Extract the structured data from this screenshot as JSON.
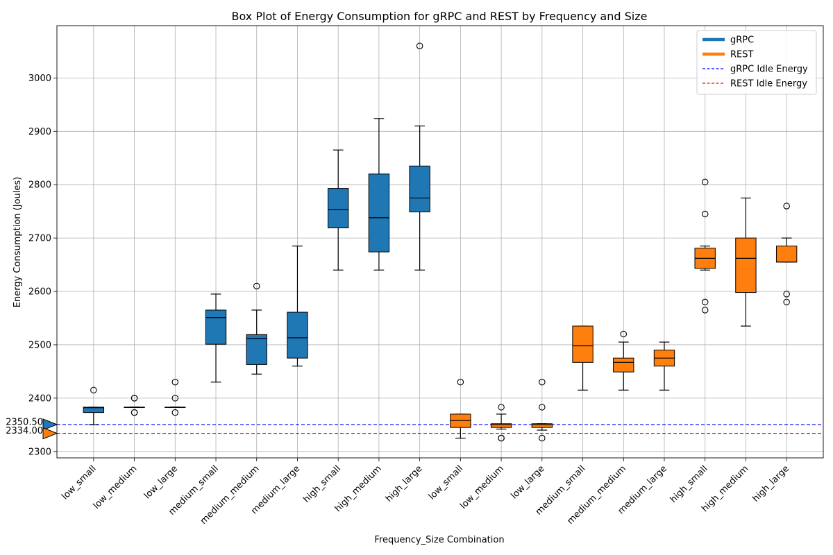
{
  "chart_data": {
    "type": "box",
    "title": "Box Plot of Energy Consumption for gRPC and REST by Frequency and Size",
    "xlabel": "Frequency_Size Combination",
    "ylabel": "Energy Consumption (Joules)",
    "ylim": [
      2288,
      3098
    ],
    "yticks": [
      2300,
      2400,
      2500,
      2600,
      2700,
      2800,
      2900,
      3000
    ],
    "grid": true,
    "legend_placement": "top-right",
    "legend": [
      {
        "label": "gRPC",
        "kind": "line",
        "color": "#1f77b4"
      },
      {
        "label": "REST",
        "kind": "line",
        "color": "#ff7f0e"
      },
      {
        "label": "gRPC Idle Energy",
        "kind": "dashed",
        "color": "#0000ff"
      },
      {
        "label": "REST Idle Energy",
        "kind": "dashed",
        "color": "#ff0000"
      }
    ],
    "idle_lines": [
      {
        "name": "gRPC Idle Energy",
        "value": 2350.5,
        "label": "2350.50",
        "color": "#0000ff",
        "marker_color": "#1f77b4"
      },
      {
        "name": "REST Idle Energy",
        "value": 2334.0,
        "label": "2334.00",
        "color": "#ff0000",
        "marker_color": "#ff7f0e"
      }
    ],
    "series": [
      {
        "name": "gRPC",
        "color": "#1f77b4",
        "boxes": [
          {
            "category": "low_small",
            "whislo": 2350,
            "q1": 2373,
            "med": 2382,
            "q3": 2383,
            "whishi": 2383,
            "fliers": [
              2415
            ]
          },
          {
            "category": "low_medium",
            "whislo": 2383,
            "q1": 2383,
            "med": 2383,
            "q3": 2383,
            "whishi": 2383,
            "fliers": [
              2400,
              2400,
              2373,
              2373
            ]
          },
          {
            "category": "low_large",
            "whislo": 2383,
            "q1": 2383,
            "med": 2383,
            "q3": 2383,
            "whishi": 2383,
            "fliers": [
              2430,
              2400,
              2373
            ]
          },
          {
            "category": "medium_small",
            "whislo": 2430,
            "q1": 2501,
            "med": 2551,
            "q3": 2565,
            "whishi": 2595,
            "fliers": []
          },
          {
            "category": "medium_medium",
            "whislo": 2445,
            "q1": 2463,
            "med": 2512,
            "q3": 2519,
            "whishi": 2565,
            "fliers": [
              2610
            ]
          },
          {
            "category": "medium_large",
            "whislo": 2460,
            "q1": 2475,
            "med": 2513,
            "q3": 2561,
            "whishi": 2685,
            "fliers": []
          },
          {
            "category": "high_small",
            "whislo": 2640,
            "q1": 2719,
            "med": 2753,
            "q3": 2793,
            "whishi": 2865,
            "fliers": []
          },
          {
            "category": "high_medium",
            "whislo": 2640,
            "q1": 2674,
            "med": 2738,
            "q3": 2820,
            "whishi": 2924,
            "fliers": []
          },
          {
            "category": "high_large",
            "whislo": 2640,
            "q1": 2749,
            "med": 2775,
            "q3": 2835,
            "whishi": 2910,
            "fliers": [
              3060
            ]
          }
        ]
      },
      {
        "name": "REST",
        "color": "#ff7f0e",
        "boxes": [
          {
            "category": "low_small",
            "whislo": 2325,
            "q1": 2345,
            "med": 2358,
            "q3": 2370,
            "whishi": 2370,
            "fliers": [
              2430
            ]
          },
          {
            "category": "low_medium",
            "whislo": 2342,
            "q1": 2345,
            "med": 2350,
            "q3": 2352,
            "whishi": 2370,
            "fliers": [
              2383,
              2325,
              2325
            ]
          },
          {
            "category": "low_large",
            "whislo": 2340,
            "q1": 2345,
            "med": 2350,
            "q3": 2352,
            "whishi": 2352,
            "fliers": [
              2430,
              2383,
              2325
            ]
          },
          {
            "category": "medium_small",
            "whislo": 2415,
            "q1": 2467,
            "med": 2498,
            "q3": 2535,
            "whishi": 2535,
            "fliers": []
          },
          {
            "category": "medium_medium",
            "whislo": 2415,
            "q1": 2449,
            "med": 2467,
            "q3": 2475,
            "whishi": 2505,
            "fliers": [
              2520
            ]
          },
          {
            "category": "medium_large",
            "whislo": 2415,
            "q1": 2460,
            "med": 2475,
            "q3": 2490,
            "whishi": 2505,
            "fliers": []
          },
          {
            "category": "high_small",
            "whislo": 2640,
            "q1": 2643,
            "med": 2662,
            "q3": 2681,
            "whishi": 2685,
            "fliers": [
              2805,
              2745,
              2580,
              2565
            ]
          },
          {
            "category": "high_medium",
            "whislo": 2535,
            "q1": 2598,
            "med": 2662,
            "q3": 2700,
            "whishi": 2775,
            "fliers": []
          },
          {
            "category": "high_large",
            "whislo": 2655,
            "q1": 2655,
            "med": 2655,
            "q3": 2685,
            "whishi": 2700,
            "fliers": [
              2760,
              2595,
              2580
            ]
          }
        ]
      }
    ]
  }
}
